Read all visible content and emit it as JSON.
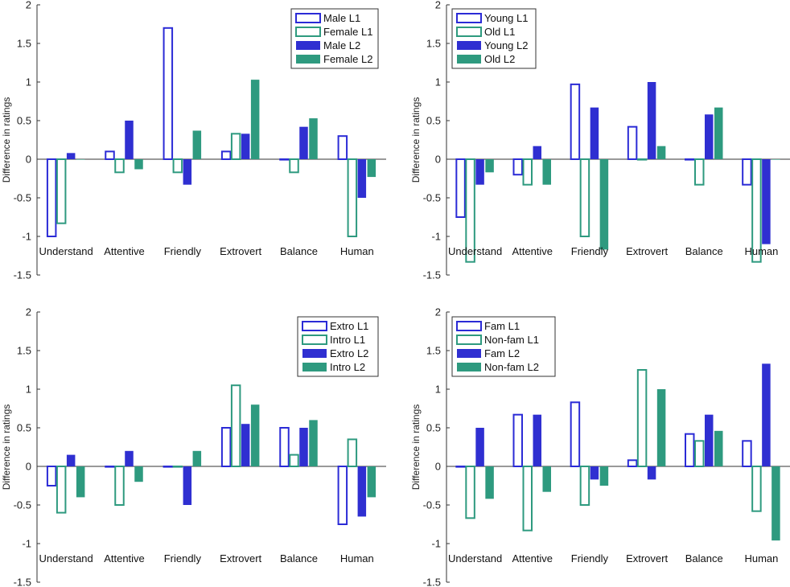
{
  "chart_data": [
    {
      "type": "bar",
      "ylabel": "Difference in ratings",
      "ylim": [
        -1.5,
        2
      ],
      "yticks": [
        "2",
        "1.5",
        "1",
        "0.5",
        "0",
        "-0.5",
        "-1",
        "-1.5"
      ],
      "categories": [
        "Understand",
        "Attentive",
        "Friendly",
        "Extrovert",
        "Balance",
        "Human"
      ],
      "legend_position": "top-right",
      "series": [
        {
          "name": "Male L1",
          "style": "outline",
          "color": "#2b2bd6",
          "values": [
            -1.0,
            0.1,
            1.7,
            0.1,
            0.0,
            0.3
          ]
        },
        {
          "name": "Female L1",
          "style": "outline",
          "color": "#2e9a7f",
          "values": [
            -0.83,
            -0.17,
            -0.17,
            0.33,
            -0.17,
            -1.0
          ]
        },
        {
          "name": "Male L2",
          "style": "filled",
          "color": "#2f2fd1",
          "values": [
            0.08,
            0.5,
            -0.33,
            0.33,
            0.42,
            -0.5
          ]
        },
        {
          "name": "Female L2",
          "style": "filled",
          "color": "#2e9a7f",
          "values": [
            0.0,
            -0.13,
            0.37,
            1.03,
            0.53,
            -0.23
          ]
        }
      ]
    },
    {
      "type": "bar",
      "ylabel": "Difference in ratings",
      "ylim": [
        -1.5,
        2
      ],
      "yticks": [
        "2",
        "1.5",
        "1",
        "0.5",
        "0",
        "-0.5",
        "-1",
        "-1.5"
      ],
      "categories": [
        "Understand",
        "Attentive",
        "Friendly",
        "Extrovert",
        "Balance",
        "Human"
      ],
      "legend_position": "top-left",
      "series": [
        {
          "name": "Young L1",
          "style": "outline",
          "color": "#2b2bd6",
          "values": [
            -0.75,
            -0.2,
            0.97,
            0.42,
            0.0,
            -0.33
          ]
        },
        {
          "name": "Old L1",
          "style": "outline",
          "color": "#2e9a7f",
          "values": [
            -1.33,
            -0.33,
            -1.0,
            0.0,
            -0.33,
            -1.33
          ]
        },
        {
          "name": "Young L2",
          "style": "filled",
          "color": "#2f2fd1",
          "values": [
            -0.33,
            0.17,
            0.67,
            1.0,
            0.58,
            -1.1
          ]
        },
        {
          "name": "Old L2",
          "style": "filled",
          "color": "#2e9a7f",
          "values": [
            -0.17,
            -0.33,
            -1.17,
            0.17,
            0.67,
            0.0
          ]
        }
      ]
    },
    {
      "type": "bar",
      "ylabel": "Difference in ratings",
      "ylim": [
        -1.5,
        2
      ],
      "yticks": [
        "2",
        "1.5",
        "1",
        "0.5",
        "0",
        "-0.5",
        "-1",
        "-1.5"
      ],
      "categories": [
        "Understand",
        "Attentive",
        "Friendly",
        "Extrovert",
        "Balance",
        "Human"
      ],
      "legend_position": "top-right",
      "series": [
        {
          "name": "Extro L1",
          "style": "outline",
          "color": "#2b2bd6",
          "values": [
            -0.25,
            0.0,
            0.0,
            0.5,
            0.5,
            -0.75
          ]
        },
        {
          "name": "Intro L1",
          "style": "outline",
          "color": "#2e9a7f",
          "values": [
            -0.6,
            -0.5,
            0.0,
            1.05,
            0.15,
            0.35
          ]
        },
        {
          "name": "Extro L2",
          "style": "filled",
          "color": "#2f2fd1",
          "values": [
            0.15,
            0.2,
            -0.5,
            0.55,
            0.5,
            -0.65
          ]
        },
        {
          "name": "Intro L2",
          "style": "filled",
          "color": "#2e9a7f",
          "values": [
            -0.4,
            -0.2,
            0.2,
            0.8,
            0.6,
            -0.4
          ]
        }
      ]
    },
    {
      "type": "bar",
      "ylabel": "Difference in ratings",
      "ylim": [
        -1.5,
        2
      ],
      "yticks": [
        "2",
        "1.5",
        "1",
        "0.5",
        "0",
        "-0.5",
        "-1",
        "-1.5"
      ],
      "categories": [
        "Understand",
        "Attentive",
        "Friendly",
        "Extrovert",
        "Balance",
        "Human"
      ],
      "legend_position": "top-left",
      "series": [
        {
          "name": "Fam L1",
          "style": "outline",
          "color": "#2b2bd6",
          "values": [
            0.0,
            0.67,
            0.83,
            0.08,
            0.42,
            0.33
          ]
        },
        {
          "name": "Non-fam L1",
          "style": "outline",
          "color": "#2e9a7f",
          "values": [
            -0.67,
            -0.83,
            -0.5,
            1.25,
            0.33,
            -0.58
          ]
        },
        {
          "name": "Fam L2",
          "style": "filled",
          "color": "#2f2fd1",
          "values": [
            0.5,
            0.67,
            -0.17,
            -0.17,
            0.67,
            1.33
          ]
        },
        {
          "name": "Non-fam L2",
          "style": "filled",
          "color": "#2e9a7f",
          "values": [
            -0.42,
            -0.33,
            -0.25,
            1.0,
            0.46,
            -0.96
          ]
        }
      ]
    }
  ]
}
